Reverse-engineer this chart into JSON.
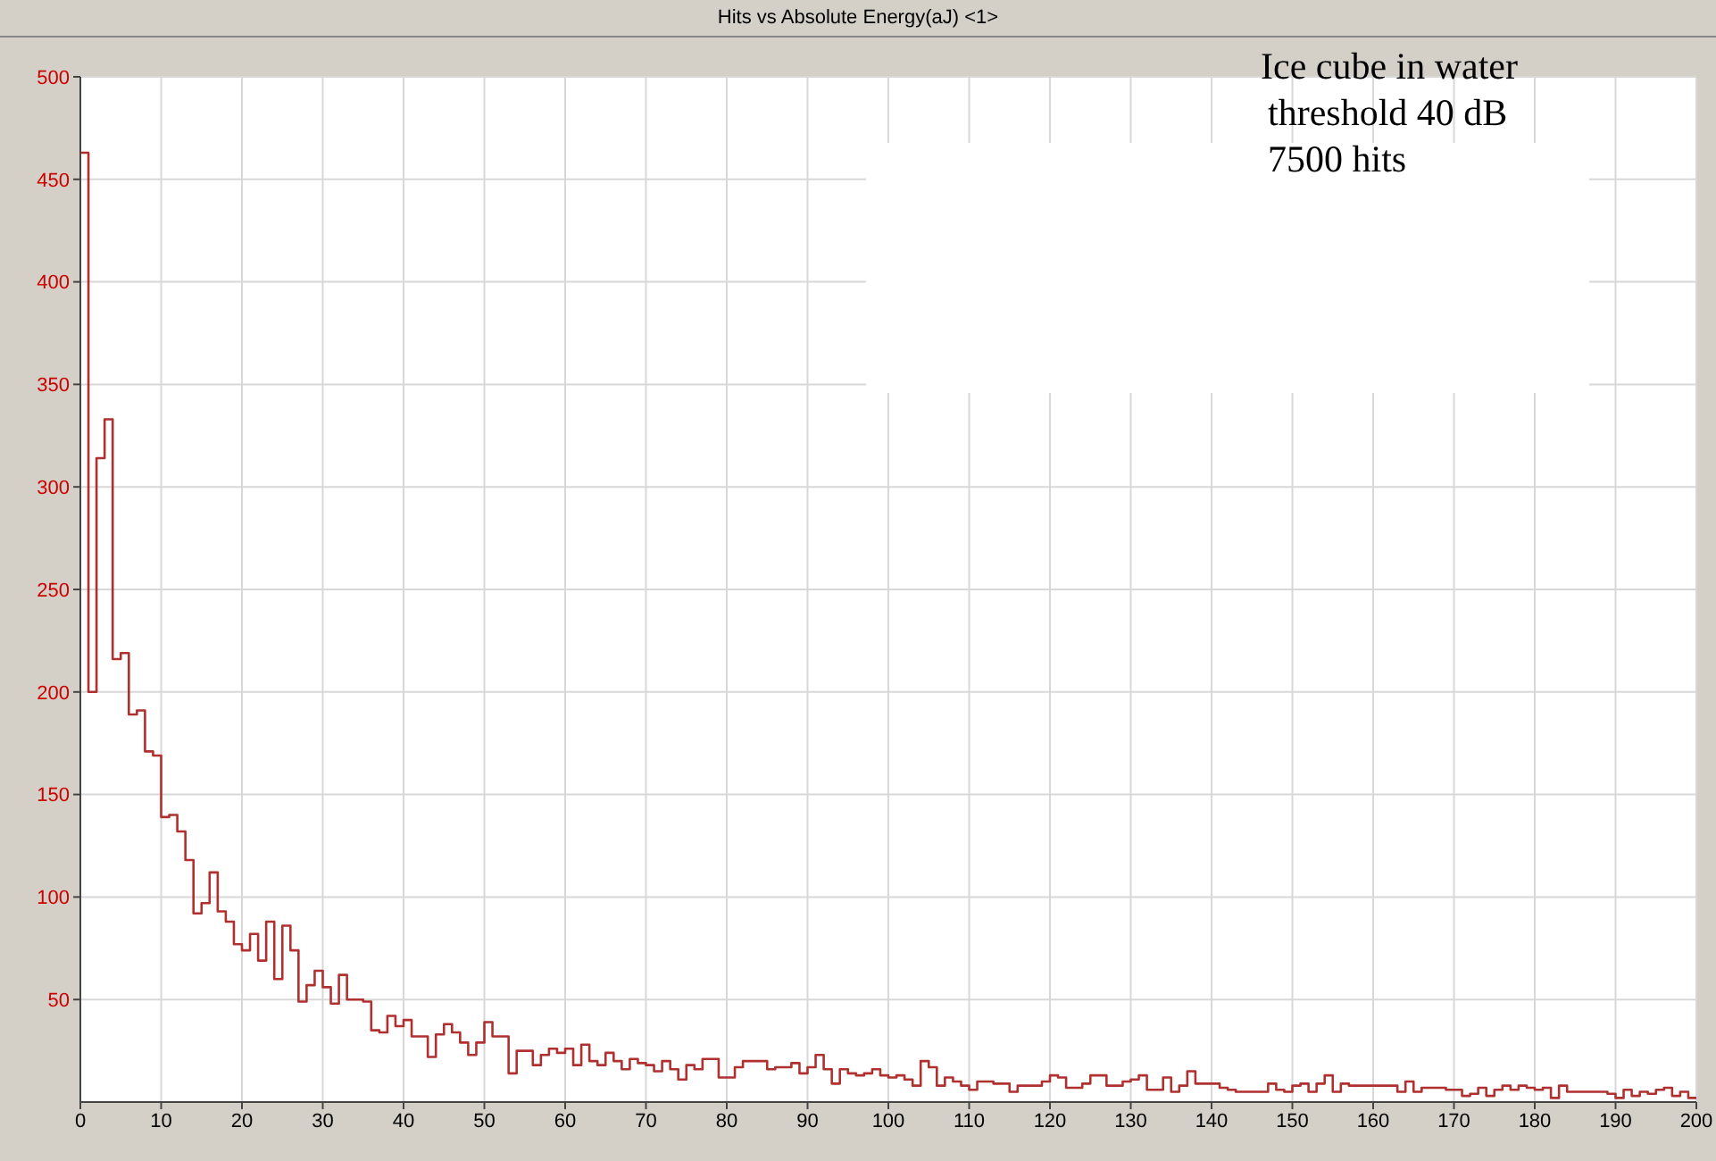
{
  "chart_data": {
    "type": "histogram",
    "title": "Hits vs Absolute Energy(aJ) <1>",
    "annotations": [
      "Ice cube in water",
      "threshold 40 dB",
      "7500 hits"
    ],
    "color": "#b03030",
    "bins": [
      0,
      1,
      2,
      3,
      4,
      5,
      6,
      7,
      8,
      9,
      10,
      11,
      12,
      13,
      14,
      15,
      16,
      17,
      18,
      19,
      20,
      21,
      22,
      23,
      24,
      25,
      26,
      27,
      28,
      29,
      30,
      31,
      32,
      33,
      34,
      35,
      36,
      37,
      38,
      39,
      40,
      41,
      42,
      43,
      44,
      45,
      46,
      47,
      48,
      49,
      50,
      51,
      52,
      53,
      54,
      55,
      56,
      57,
      58,
      59,
      60,
      61,
      62,
      63,
      64,
      65,
      66,
      67,
      68,
      69,
      70,
      71,
      72,
      73,
      74,
      75,
      76,
      77,
      78,
      79,
      80,
      81,
      82,
      83,
      84,
      85,
      86,
      87,
      88,
      89,
      90,
      91,
      92,
      93,
      94,
      95,
      96,
      97,
      98,
      99,
      100,
      101,
      102,
      103,
      104,
      105,
      106,
      107,
      108,
      109,
      110,
      111,
      112,
      113,
      114,
      115,
      116,
      117,
      118,
      119,
      120,
      121,
      122,
      123,
      124,
      125,
      126,
      127,
      128,
      129,
      130,
      131,
      132,
      133,
      134,
      135,
      136,
      137,
      138,
      139,
      140,
      141,
      142,
      143,
      144,
      145,
      146,
      147,
      148,
      149,
      150,
      151,
      152,
      153,
      154,
      155,
      156,
      157,
      158,
      159,
      160,
      161,
      162,
      163,
      164,
      165,
      166,
      167,
      168,
      169,
      170,
      171,
      172,
      173,
      174,
      175,
      176,
      177,
      178,
      179,
      180,
      181,
      182,
      183,
      184,
      185,
      186,
      187,
      188,
      189,
      190,
      191,
      192,
      193,
      194,
      195,
      196,
      197,
      198,
      199,
      200
    ],
    "values": [
      463,
      200,
      314,
      333,
      216,
      219,
      189,
      191,
      171,
      169,
      139,
      140,
      132,
      118,
      92,
      97,
      112,
      93,
      88,
      77,
      74,
      82,
      69,
      88,
      60,
      86,
      74,
      49,
      57,
      64,
      56,
      48,
      62,
      50,
      50,
      49,
      35,
      34,
      42,
      37,
      40,
      32,
      32,
      22,
      33,
      38,
      34,
      29,
      23,
      29,
      39,
      32,
      32,
      14,
      25,
      25,
      18,
      23,
      26,
      24,
      26,
      18,
      28,
      20,
      18,
      24,
      20,
      16,
      21,
      19,
      18,
      15,
      20,
      16,
      11,
      18,
      16,
      21,
      21,
      12,
      12,
      17,
      20,
      20,
      20,
      16,
      17,
      17,
      19,
      14,
      17,
      23,
      16,
      9,
      16,
      14,
      13,
      14,
      16,
      13,
      12,
      13,
      11,
      8,
      20,
      17,
      8,
      12,
      10,
      8,
      6,
      10,
      10,
      9,
      9,
      5,
      8,
      8,
      8,
      10,
      13,
      12,
      7,
      7,
      9,
      13,
      13,
      8,
      8,
      10,
      11,
      13,
      6,
      6,
      12,
      5,
      8,
      15,
      9,
      9,
      9,
      7,
      6,
      5,
      5,
      5,
      5,
      9,
      6,
      5,
      8,
      9,
      5,
      9,
      13,
      5,
      9,
      8,
      8,
      8,
      8,
      8,
      8,
      5,
      10,
      5,
      7,
      7,
      7,
      6,
      6,
      3,
      4,
      7,
      3,
      6,
      8,
      6,
      8,
      7,
      6,
      7,
      2,
      8,
      5,
      5,
      5,
      5,
      5,
      4,
      2,
      6,
      3,
      5,
      4,
      6,
      7,
      3,
      5,
      2
    ],
    "xlim": [
      0,
      200
    ],
    "xticks": [
      0,
      10,
      20,
      30,
      40,
      50,
      60,
      70,
      80,
      90,
      100,
      110,
      120,
      130,
      140,
      150,
      160,
      170,
      180,
      190,
      200
    ],
    "ylim": [
      0,
      500
    ],
    "yticks": [
      50,
      100,
      150,
      200,
      250,
      300,
      350,
      400,
      450,
      500
    ],
    "grid": true
  }
}
